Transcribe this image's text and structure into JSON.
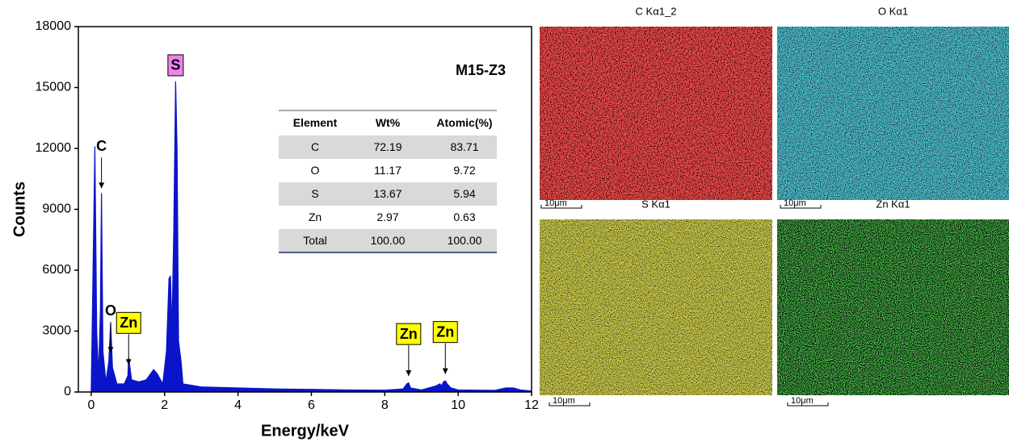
{
  "chart_data": {
    "type": "area",
    "sample": "M15-Z3",
    "xlabel": "Energy/keV",
    "ylabel": "Counts",
    "color": "#0a14c8",
    "x": [
      0,
      0.05,
      0.1,
      0.15,
      0.2,
      0.25,
      0.28,
      0.32,
      0.4,
      0.48,
      0.53,
      0.58,
      0.7,
      0.9,
      1.0,
      1.02,
      1.1,
      1.3,
      1.5,
      1.7,
      1.8,
      1.95,
      2.05,
      2.12,
      2.16,
      2.2,
      2.25,
      2.3,
      2.34,
      2.38,
      2.45,
      2.5,
      3,
      4,
      5,
      6,
      7,
      8,
      8.5,
      8.6,
      8.65,
      8.7,
      9,
      9.4,
      9.5,
      9.55,
      9.6,
      9.65,
      9.7,
      9.8,
      10,
      11,
      11.3,
      11.5,
      11.7,
      12
    ],
    "values": [
      0,
      6000,
      12100,
      3000,
      800,
      4000,
      9800,
      2000,
      500,
      1500,
      3400,
      1200,
      400,
      400,
      800,
      1700,
      600,
      500,
      600,
      1100,
      900,
      400,
      2000,
      5600,
      5700,
      3000,
      8000,
      15300,
      12000,
      2500,
      1500,
      400,
      250,
      200,
      150,
      130,
      100,
      90,
      150,
      400,
      450,
      200,
      100,
      300,
      400,
      300,
      500,
      550,
      400,
      200,
      100,
      80,
      200,
      200,
      100,
      50
    ],
    "xlim": [
      -0.35,
      12
    ],
    "ylim": [
      0,
      18000
    ],
    "xticks": [
      0,
      2,
      4,
      6,
      8,
      10,
      12
    ],
    "yticks": [
      0,
      3000,
      6000,
      9000,
      12000,
      15000,
      18000
    ],
    "annotations": [
      {
        "text": "C",
        "x": 0.28,
        "y": 9800,
        "arrow": true
      },
      {
        "text": "O",
        "x": 0.53,
        "y": 1700,
        "arrow": true
      },
      {
        "text": "Zn",
        "x": 1.02,
        "y": 1100,
        "arrow": true,
        "box": "#ffff00"
      },
      {
        "text": "S",
        "x": 2.3,
        "y": 15300,
        "arrow": false,
        "box": "#ee82ee"
      },
      {
        "text": "Zn",
        "x": 8.65,
        "y": 550,
        "arrow": true,
        "box": "#ffff00"
      },
      {
        "text": "Zn",
        "x": 9.65,
        "y": 650,
        "arrow": true,
        "box": "#ffff00"
      }
    ]
  },
  "table": {
    "header": [
      "Element",
      "Wt%",
      "Atomic(%)"
    ],
    "rows": [
      [
        "C",
        "72.19",
        "83.71"
      ],
      [
        "O",
        "11.17",
        "9.72"
      ],
      [
        "S",
        "13.67",
        "5.94"
      ],
      [
        "Zn",
        "2.97",
        "0.63"
      ],
      [
        "Total",
        "100.00",
        "100.00"
      ]
    ]
  },
  "maps": [
    {
      "title": "C Kα1_2",
      "scale": "10μm"
    },
    {
      "title": "O Kα1",
      "scale": "10μm"
    },
    {
      "title": "S Kα1",
      "scale": "10μm"
    },
    {
      "title": "Zn Kα1",
      "scale": "10μm"
    }
  ]
}
